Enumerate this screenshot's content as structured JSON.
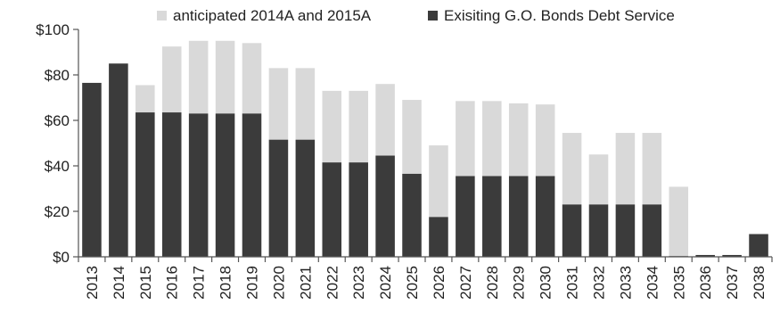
{
  "chart_data": {
    "type": "bar",
    "stacked": true,
    "categories": [
      "2013",
      "2014",
      "2015",
      "2016",
      "2017",
      "2018",
      "2019",
      "2020",
      "2021",
      "2022",
      "2023",
      "2024",
      "2025",
      "2026",
      "2027",
      "2028",
      "2029",
      "2030",
      "2031",
      "2032",
      "2033",
      "2034",
      "2035",
      "2036",
      "2037",
      "2038"
    ],
    "series": [
      {
        "name": "Exisiting G.O. Bonds Debt Service",
        "color": "#3b3b3b",
        "values": [
          76.5,
          85,
          63.5,
          63.5,
          63,
          63,
          63,
          51.5,
          51.5,
          41.5,
          41.5,
          44.5,
          36.5,
          17.5,
          35.5,
          35.5,
          35.5,
          35.5,
          23,
          23,
          23,
          23,
          0.3,
          0.8,
          0.8,
          10
        ]
      },
      {
        "name": "anticipated 2014A and 2015A",
        "color": "#d9d9d9",
        "values": [
          0,
          0,
          12,
          29,
          32,
          32,
          31,
          31.5,
          31.5,
          31.5,
          31.5,
          31.5,
          32.5,
          31.5,
          33,
          33,
          32,
          31.5,
          31.5,
          22,
          31.5,
          31.5,
          30.5,
          0,
          0,
          0
        ]
      }
    ],
    "y_ticks": [
      "$0",
      "$20",
      "$40",
      "$60",
      "$80",
      "$100"
    ],
    "ylim": [
      0,
      100
    ],
    "grid": false,
    "legend_position": "top",
    "xlabel": "",
    "ylabel": ""
  }
}
